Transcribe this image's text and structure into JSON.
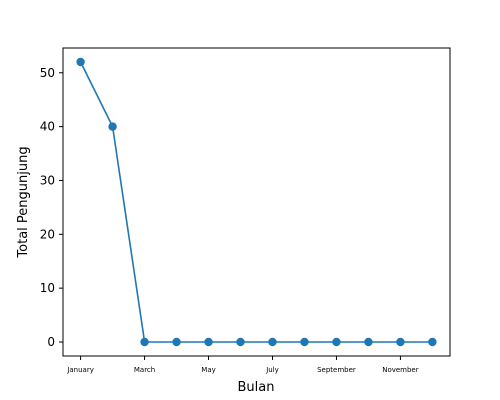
{
  "chart_data": {
    "type": "line",
    "title": "",
    "xlabel": "Bulan",
    "ylabel": "Total Pengunjung",
    "categories": [
      "January",
      "February",
      "March",
      "April",
      "May",
      "June",
      "July",
      "August",
      "September",
      "October",
      "November",
      "December"
    ],
    "x_tick_labels": [
      "January",
      "March",
      "May",
      "July",
      "September",
      "November"
    ],
    "series": [
      {
        "values": [
          52,
          40,
          0,
          0,
          0,
          0,
          0,
          0,
          0,
          0,
          0,
          0
        ],
        "color": "#1f77b4",
        "marker": "circle"
      }
    ],
    "y_ticks": [
      0,
      10,
      20,
      30,
      40,
      50
    ],
    "ylim": [
      -2.6,
      54.6
    ],
    "grid": false,
    "legend": "none"
  }
}
